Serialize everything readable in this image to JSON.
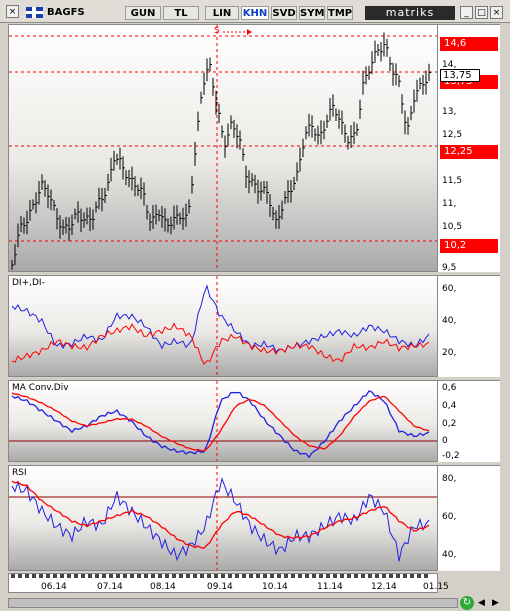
{
  "toolbar": {
    "symbol": "BAGFS",
    "buttons": [
      "GUN",
      "TL",
      "LIN",
      "KHN",
      "SVD",
      "SYM",
      "TMP"
    ],
    "active": "KHN",
    "brand": "matriks"
  },
  "price_panel": {
    "signal_label": "S",
    "axis_ticks": [
      "14,",
      "13,",
      "12,5",
      "11,5",
      "11,",
      "10,5",
      "9,5"
    ],
    "levels": [
      "14,6",
      "12,25",
      "10,2"
    ],
    "current": "13,75",
    "current_red_label": "13,75"
  },
  "dmi_panel": {
    "label": "DI+,DI-",
    "ticks": [
      "60,",
      "40,",
      "20,"
    ]
  },
  "macd_panel": {
    "label": "MA Conv.Div",
    "ticks": [
      "0,6",
      "0,4",
      "0,2",
      "0",
      "-0,2"
    ]
  },
  "rsi_panel": {
    "label": "RSI",
    "ticks": [
      "80,",
      "60,",
      "40,"
    ]
  },
  "x_axis": {
    "ticks": [
      "06.14",
      "07.14",
      "08.14",
      "09.14",
      "10.14",
      "11.14",
      "12.14",
      "01.15"
    ]
  },
  "colors": {
    "accent_red": "#ff0000",
    "blue_line": "#2020e0"
  }
}
